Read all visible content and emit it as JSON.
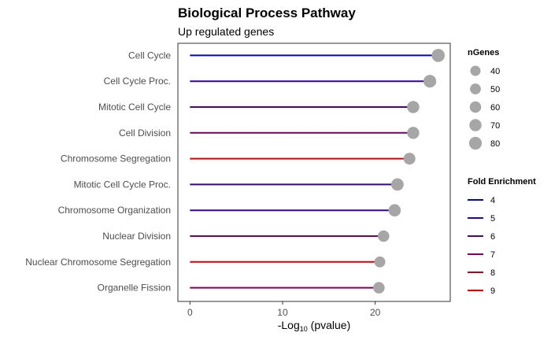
{
  "chart_data": {
    "type": "lollipop",
    "title": "Biological Process Pathway",
    "subtitle": "Up regulated genes",
    "xlabel": "-Log",
    "xlabel_sub": "10",
    "xlabel_suffix": " (pvalue)",
    "ylabel": "",
    "xlim": [
      -1.3,
      28.1
    ],
    "xticks": [
      0,
      10,
      20
    ],
    "categories": [
      "Cell Cycle",
      "Cell Cycle Proc.",
      "Mitotic Cell Cycle",
      "Cell Division",
      "Chromosome Segregation",
      "Mitotic Cell Cycle Proc.",
      "Chromosome Organization",
      "Nuclear Division",
      "Nuclear Chromosome Segregation",
      "Organelle Fission"
    ],
    "values": [
      26.8,
      25.9,
      24.1,
      24.1,
      23.7,
      22.4,
      22.1,
      20.9,
      20.5,
      20.4
    ],
    "fold_enrichment": [
      4.1,
      5.2,
      5.9,
      6.6,
      8.9,
      5.3,
      5.2,
      6.9,
      8.8,
      6.9
    ],
    "n_genes": [
      85,
      80,
      72,
      70,
      65,
      75,
      72,
      60,
      52,
      60
    ],
    "point_color": "#a6a6a6",
    "legend_size": {
      "title": "nGenes",
      "labels": [
        "40",
        "50",
        "60",
        "70",
        "80"
      ],
      "values": [
        40,
        50,
        60,
        70,
        80
      ]
    },
    "legend_color": {
      "title": "Fold Enrichment",
      "labels": [
        "4",
        "5",
        "6",
        "7",
        "8",
        "9"
      ],
      "values": [
        4,
        5,
        6,
        7,
        8,
        9
      ]
    },
    "color_scale": {
      "low": "#0000cc",
      "high": "#dd0000",
      "domain": [
        4,
        9
      ]
    },
    "legend_position": "right"
  }
}
